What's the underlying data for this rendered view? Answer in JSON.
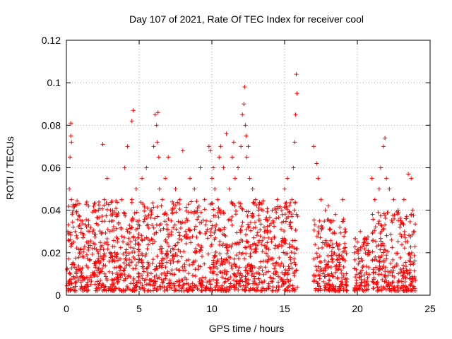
{
  "chart_data": {
    "type": "scatter",
    "title": "Day 107 of 2021, Rate Of TEC Index for receiver cool",
    "xlabel": "GPS time / hours",
    "ylabel": "ROTI / TECUs",
    "xlim": [
      0,
      25
    ],
    "ylim": [
      0,
      0.12
    ],
    "xticks": [
      0,
      5,
      10,
      15,
      20,
      25
    ],
    "xtick_labels": [
      "0",
      "5",
      "10",
      "15",
      "20",
      "25"
    ],
    "yticks": [
      0,
      0.02,
      0.04,
      0.06,
      0.08,
      0.1,
      0.12
    ],
    "ytick_labels": [
      "0",
      "0.02",
      "0.04",
      "0.06",
      "0.08",
      "0.1",
      "0.12"
    ],
    "grid": true,
    "marker": "plus",
    "color": "#ff0000",
    "series": [
      {
        "x": [
          0.05,
          0.1,
          0.2,
          0.25,
          0.3,
          0.3,
          0.35,
          0.35,
          0.4,
          0.45,
          0.5,
          0.6,
          0.7,
          0.8,
          0.9,
          1.0,
          1.2,
          1.4,
          1.6,
          1.8,
          2.0,
          2.2,
          2.5,
          2.6,
          2.8,
          3.0,
          3.0,
          3.2,
          3.5,
          3.8,
          4.0,
          4.2,
          4.2,
          4.5,
          4.5,
          4.6,
          4.8,
          5.0,
          5.2,
          5.5,
          5.8,
          6.0,
          6.1,
          6.2,
          6.25,
          6.3,
          6.35,
          6.4,
          6.6,
          6.8,
          7.0,
          7.2,
          7.5,
          7.8,
          8.0,
          8.2,
          8.5,
          8.8,
          9.0,
          9.2,
          9.5,
          9.8,
          9.9,
          10.0,
          10.1,
          10.2,
          10.4,
          10.5,
          10.6,
          10.8,
          11.0,
          11.2,
          11.4,
          11.5,
          11.6,
          11.8,
          12.0,
          12.1,
          12.2,
          12.25,
          12.3,
          12.35,
          12.4,
          12.5,
          12.6,
          12.8,
          13.0,
          13.2,
          13.5,
          13.8,
          14.0,
          14.2,
          14.5,
          14.8,
          15.0,
          15.2,
          15.5,
          15.6,
          15.7,
          15.75,
          15.8,
          15.85,
          17.0,
          17.2,
          17.3,
          17.5,
          17.8,
          18.0,
          18.2,
          18.5,
          18.8,
          19.0,
          19.2,
          19.8,
          20.0,
          20.2,
          20.5,
          20.8,
          21.0,
          21.2,
          21.5,
          21.6,
          21.8,
          21.9,
          22.0,
          22.2,
          22.5,
          22.8,
          23.0,
          23.2,
          23.5,
          23.7,
          23.8,
          23.9
        ],
        "y": [
          0.012,
          0.03,
          0.05,
          0.065,
          0.075,
          0.081,
          0.072,
          0.045,
          0.038,
          0.015,
          0.025,
          0.03,
          0.028,
          0.012,
          0.02,
          0.035,
          0.018,
          0.025,
          0.03,
          0.022,
          0.015,
          0.04,
          0.071,
          0.045,
          0.055,
          0.02,
          0.03,
          0.035,
          0.025,
          0.045,
          0.06,
          0.07,
          0.03,
          0.082,
          0.045,
          0.087,
          0.05,
          0.035,
          0.055,
          0.06,
          0.04,
          0.07,
          0.085,
          0.08,
          0.072,
          0.086,
          0.065,
          0.05,
          0.045,
          0.055,
          0.065,
          0.035,
          0.05,
          0.045,
          0.068,
          0.03,
          0.055,
          0.05,
          0.04,
          0.06,
          0.045,
          0.07,
          0.068,
          0.055,
          0.06,
          0.05,
          0.045,
          0.065,
          0.07,
          0.06,
          0.076,
          0.05,
          0.065,
          0.072,
          0.055,
          0.06,
          0.07,
          0.085,
          0.09,
          0.098,
          0.08,
          0.075,
          0.065,
          0.07,
          0.055,
          0.05,
          0.045,
          0.04,
          0.04,
          0.035,
          0.03,
          0.035,
          0.045,
          0.04,
          0.05,
          0.055,
          0.045,
          0.06,
          0.072,
          0.085,
          0.104,
          0.095,
          0.07,
          0.062,
          0.055,
          0.045,
          0.04,
          0.042,
          0.035,
          0.038,
          0.032,
          0.045,
          0.03,
          0.02,
          0.025,
          0.03,
          0.025,
          0.02,
          0.055,
          0.045,
          0.05,
          0.06,
          0.07,
          0.074,
          0.055,
          0.05,
          0.045,
          0.04,
          0.035,
          0.045,
          0.057,
          0.055,
          0.04,
          0.03
        ]
      }
    ],
    "dense_bands": [
      {
        "x_start": 0.0,
        "x_end": 15.9,
        "y_floor": 0.002,
        "y_typical": 0.025
      },
      {
        "x_start": 17.0,
        "x_end": 19.3,
        "y_floor": 0.002,
        "y_typical": 0.02
      },
      {
        "x_start": 19.8,
        "x_end": 20.8,
        "y_floor": 0.002,
        "y_typical": 0.015
      },
      {
        "x_start": 21.0,
        "x_end": 24.0,
        "y_floor": 0.002,
        "y_typical": 0.022
      }
    ]
  }
}
